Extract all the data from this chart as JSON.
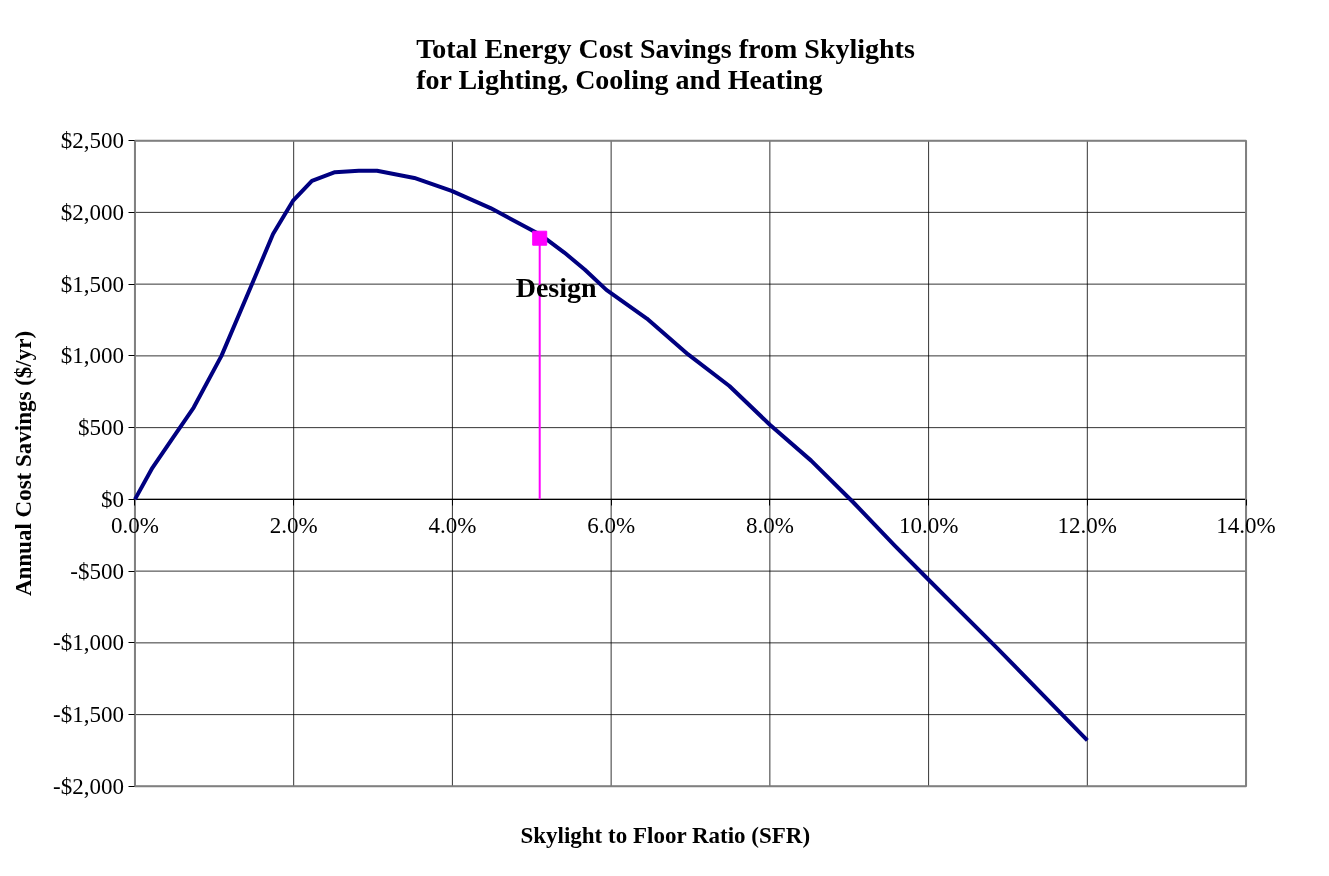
{
  "chart_data": {
    "type": "line",
    "title": "Total Energy Cost Savings from Skylights\nfor Lighting, Cooling and Heating",
    "xlabel": "Skylight to Floor Ratio (SFR)",
    "ylabel": "Annual Cost Savings ($/yr)",
    "series": [
      {
        "color": "#000080",
        "x": [
          0,
          0.22,
          0.48,
          0.74,
          1.09,
          1.49,
          1.74,
          1.99,
          2.23,
          2.52,
          2.82,
          3.05,
          3.52,
          3.99,
          4.48,
          5.12,
          5.41,
          5.67,
          5.94,
          6.45,
          6.97,
          7.49,
          8.0,
          8.52,
          9.05,
          9.57,
          10.0,
          10.87,
          12.0
        ],
        "values": [
          0,
          220,
          430,
          640,
          1000,
          1520,
          1850,
          2080,
          2220,
          2280,
          2290,
          2290,
          2240,
          2150,
          2030,
          1840,
          1720,
          1600,
          1460,
          1260,
          1010,
          790,
          520,
          270,
          -20,
          -320,
          -560,
          -1040,
          -1680
        ]
      },
      {
        "type": "lollipop",
        "color": "#ff00ff",
        "marker": "square",
        "x": [
          5.1
        ],
        "values": [
          1820
        ]
      }
    ],
    "annotations": [
      "Design"
    ],
    "xlim": [
      0,
      14
    ],
    "ylim": [
      -2000,
      2500
    ],
    "xticks": [
      {
        "value": 0,
        "label": "0.0%"
      },
      {
        "value": 2,
        "label": "2.0%"
      },
      {
        "value": 4,
        "label": "4.0%"
      },
      {
        "value": 6,
        "label": "6.0%"
      },
      {
        "value": 8,
        "label": "8.0%"
      },
      {
        "value": 10,
        "label": "10.0%"
      },
      {
        "value": 12,
        "label": "12.0%"
      },
      {
        "value": 14,
        "label": "14.0%"
      }
    ],
    "yticks": [
      {
        "value": -2000,
        "label": "-$2,000"
      },
      {
        "value": -1500,
        "label": "-$1,500"
      },
      {
        "value": -1000,
        "label": "-$1,000"
      },
      {
        "value": -500,
        "label": "-$500"
      },
      {
        "value": 0,
        "label": "$0"
      },
      {
        "value": 500,
        "label": "$500"
      },
      {
        "value": 1000,
        "label": "$1,000"
      },
      {
        "value": 1500,
        "label": "$1,500"
      },
      {
        "value": 2000,
        "label": "$2,000"
      },
      {
        "value": 2500,
        "label": "$2,500"
      }
    ],
    "grid": true
  }
}
